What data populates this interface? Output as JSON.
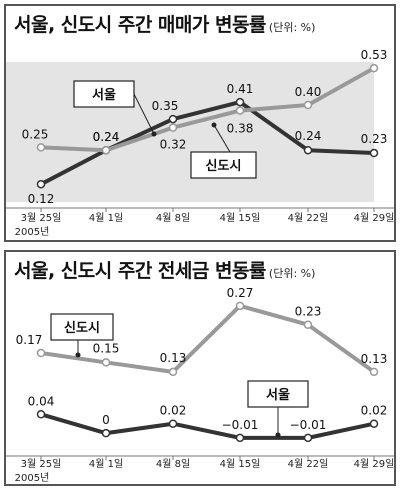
{
  "chart_data": [
    {
      "type": "line",
      "title": "서울, 신도시 주간 매매가 변동률",
      "unit": "(단위: %)",
      "categories": [
        "3월 25일",
        "4월 1일",
        "4월 8일",
        "4월 15일",
        "4월 22일",
        "4월 29일"
      ],
      "year_label": "2005년",
      "series": [
        {
          "name": "서울",
          "values": [
            0.12,
            0.24,
            0.35,
            0.41,
            0.24,
            0.23
          ],
          "color": "#333333"
        },
        {
          "name": "신도시",
          "values": [
            0.25,
            0.24,
            0.32,
            0.38,
            0.4,
            0.53
          ],
          "color": "#999999"
        }
      ],
      "ylim": [
        0.05,
        0.58
      ],
      "grid": false,
      "background_band_color": "#e4e4e4"
    },
    {
      "type": "line",
      "title": "서울, 신도시 주간 전세금 변동률",
      "unit": "(단위: %)",
      "categories": [
        "3월 25일",
        "4월 1일",
        "4월 8일",
        "4월 15일",
        "4월 22일",
        "4월 29일"
      ],
      "year_label": "2005년",
      "series": [
        {
          "name": "서울",
          "values": [
            0.04,
            0,
            0.02,
            -0.01,
            -0.01,
            0.02
          ],
          "display": [
            "0.04",
            "0",
            "0.02",
            "−0.01",
            "−0.01",
            "0.02"
          ],
          "color": "#333333"
        },
        {
          "name": "신도시",
          "values": [
            0.17,
            0.15,
            0.13,
            0.27,
            0.23,
            0.13
          ],
          "display": [
            "0.17",
            "0.15",
            "0.13",
            "0.27",
            "0.23",
            "0.13"
          ],
          "color": "#999999"
        }
      ],
      "ylim": [
        -0.04,
        0.31
      ],
      "grid": false
    }
  ]
}
